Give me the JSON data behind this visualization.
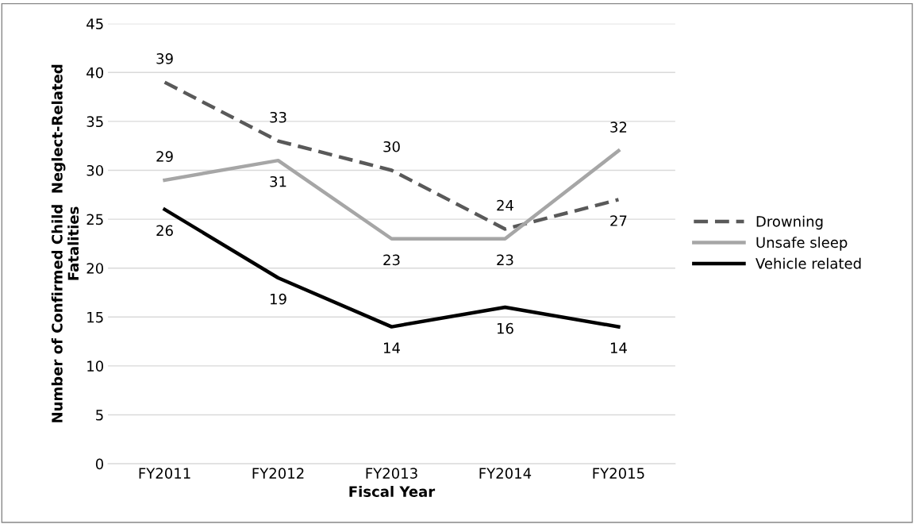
{
  "chart_data": {
    "type": "line",
    "xlabel": "Fiscal Year",
    "ylabel": "Number of Confirmed Child  Neglect-Related\nFatalities",
    "categories": [
      "FY2011",
      "FY2012",
      "FY2013",
      "FY2014",
      "FY2015"
    ],
    "series": [
      {
        "name": "Drowning",
        "color": "#595959",
        "line_style": "dashed",
        "values": [
          39,
          33,
          30,
          24,
          27
        ]
      },
      {
        "name": "Unsafe sleep",
        "color": "#a6a6a6",
        "line_style": "solid",
        "values": [
          29,
          31,
          23,
          23,
          32
        ]
      },
      {
        "name": "Vehicle related",
        "color": "#000000",
        "line_style": "solid",
        "values": [
          26,
          19,
          14,
          16,
          14
        ]
      }
    ],
    "ylim": [
      0,
      45
    ],
    "yticks": [
      0,
      5,
      10,
      15,
      20,
      25,
      30,
      35,
      40,
      45
    ],
    "grid": "y",
    "legend": "right",
    "data_labels": true,
    "marker": "none"
  }
}
